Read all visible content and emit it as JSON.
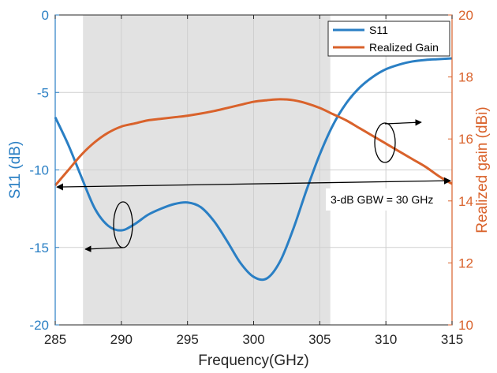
{
  "chart_data": {
    "type": "line",
    "xlabel": "Frequency(GHz)",
    "ylabel_left": "S11 (dB)",
    "ylabel_right": "Realized gain (dBi)",
    "xlim": [
      285,
      315
    ],
    "ylim_left": [
      -20,
      0
    ],
    "ylim_right": [
      10,
      20
    ],
    "x_ticks": [
      "285",
      "290",
      "295",
      "300",
      "305",
      "310",
      "315"
    ],
    "y_left_ticks": [
      "0",
      "-5",
      "-10",
      "-15",
      "-20"
    ],
    "y_right_ticks": [
      "20",
      "18",
      "16",
      "14",
      "12",
      "10"
    ],
    "grid": true,
    "legend_position": "top-right",
    "shaded_band": {
      "x_start": 287.1,
      "x_end": 305.8,
      "color": "#e2e2e2"
    },
    "series": [
      {
        "name": "S11",
        "axis": "left",
        "color": "#2a7fc4",
        "x": [
          285,
          286,
          287,
          288,
          289,
          290,
          291,
          292,
          293,
          294,
          295,
          296,
          297,
          298,
          299,
          300,
          301,
          302,
          303,
          304,
          305,
          306,
          307,
          308,
          309,
          310,
          311,
          312,
          313,
          314,
          315
        ],
        "y": [
          -6.6,
          -8.4,
          -10.5,
          -12.5,
          -13.6,
          -13.9,
          -13.5,
          -12.9,
          -12.5,
          -12.2,
          -12.1,
          -12.4,
          -13.3,
          -14.6,
          -16.0,
          -16.9,
          -17.0,
          -15.9,
          -13.8,
          -11.3,
          -9.0,
          -7.1,
          -5.7,
          -4.7,
          -4.0,
          -3.5,
          -3.2,
          -3.0,
          -2.9,
          -2.85,
          -2.8
        ]
      },
      {
        "name": "Realized Gain",
        "axis": "right",
        "color": "#d9622b",
        "x": [
          285,
          286,
          287,
          288,
          289,
          290,
          291,
          292,
          293,
          294,
          295,
          296,
          297,
          298,
          299,
          300,
          301,
          302,
          303,
          304,
          305,
          306,
          307,
          308,
          309,
          310,
          311,
          312,
          313,
          314,
          315
        ],
        "y": [
          14.5,
          15.0,
          15.5,
          15.9,
          16.2,
          16.4,
          16.5,
          16.6,
          16.65,
          16.7,
          16.75,
          16.82,
          16.9,
          17.0,
          17.1,
          17.2,
          17.25,
          17.28,
          17.25,
          17.15,
          17.0,
          16.8,
          16.6,
          16.35,
          16.1,
          15.85,
          15.6,
          15.35,
          15.1,
          14.8,
          14.55
        ]
      }
    ],
    "annotations": {
      "bandwidth_label": "3-dB GBW = 30 GHz",
      "bandwidth_arrow_y_dbi": [
        14.5,
        14.5
      ],
      "bandwidth_arrow_x": [
        285,
        315
      ]
    }
  }
}
